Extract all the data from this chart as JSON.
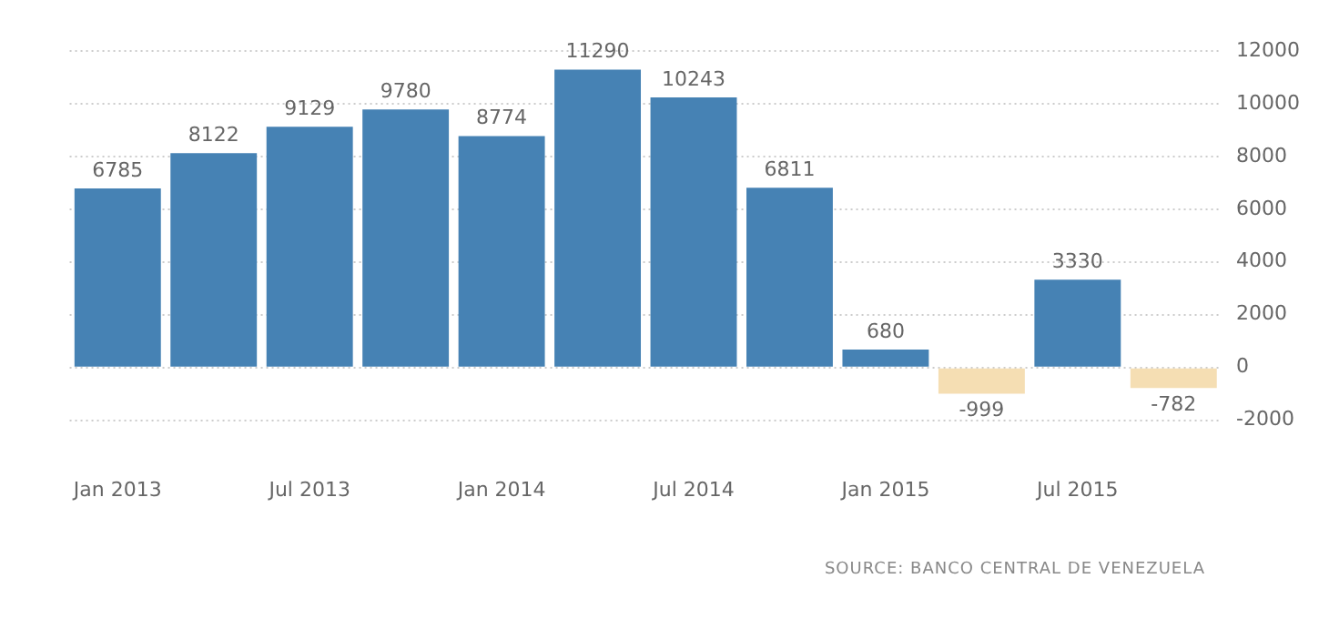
{
  "chart_data": {
    "type": "bar",
    "categories": [
      "Jan 2013",
      null,
      "Jul 2013",
      null,
      "Jan 2014",
      null,
      "Jul 2014",
      null,
      "Jan 2015",
      null,
      "Jul 2015",
      null
    ],
    "values": [
      6785,
      8122,
      9129,
      9780,
      8774,
      11290,
      10243,
      6811,
      680,
      -999,
      3330,
      -782
    ],
    "colors": [
      "#4682b4",
      "#4682b4",
      "#4682b4",
      "#4682b4",
      "#4682b4",
      "#4682b4",
      "#4682b4",
      "#4682b4",
      "#4682b4",
      "#f5deb3",
      "#4682b4",
      "#f5deb3"
    ],
    "ylim": [
      -2000,
      12000
    ],
    "yticks": [
      -2000,
      0,
      2000,
      4000,
      6000,
      8000,
      10000,
      12000
    ],
    "grid": "y",
    "data_labels": true,
    "annotations": [
      "SOURCE: BANCO CENTRAL DE VENEZUELA"
    ]
  }
}
